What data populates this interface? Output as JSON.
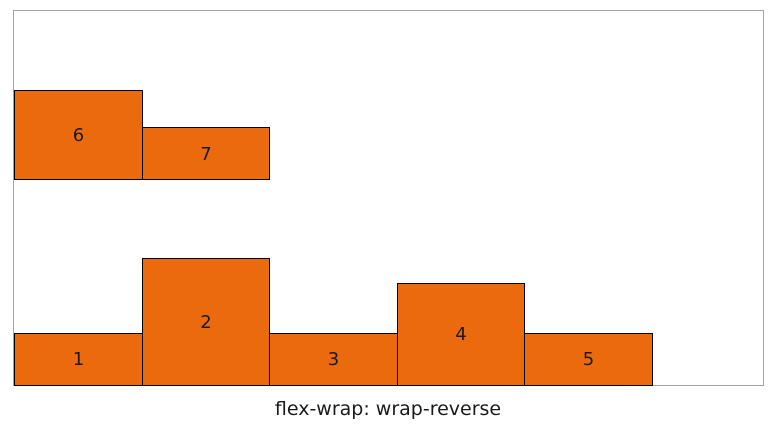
{
  "demo": {
    "caption": "flex-wrap: wrap-reverse",
    "item_color": "#ec6a0e",
    "border_color": "#000000",
    "container_border_color": "#a3a3a3",
    "items": [
      {
        "label": "1"
      },
      {
        "label": "2"
      },
      {
        "label": "3"
      },
      {
        "label": "4"
      },
      {
        "label": "5"
      },
      {
        "label": "6"
      },
      {
        "label": "7"
      }
    ]
  }
}
